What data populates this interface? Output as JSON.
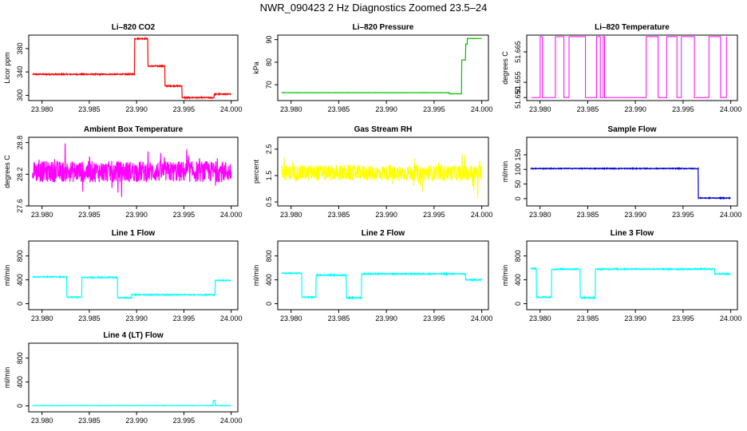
{
  "title": "NWR_090423  2 Hz Diagnostics Zoomed 23.5–24",
  "chart_data": [
    {
      "id": "co2",
      "type": "line",
      "title": "Li–820 CO2",
      "ylabel": "Licor ppm",
      "color": "#ff0000",
      "xlim": [
        23.9786,
        24.0007
      ],
      "ylim": [
        291,
        403
      ],
      "xticks": [
        "23.980",
        "23.985",
        "23.990",
        "23.995",
        "24.000"
      ],
      "yticks": [
        "300",
        "340",
        "380"
      ],
      "series": [
        {
          "name": "CO2",
          "noise": 1.0,
          "segments": [
            [
              23.979,
              23.9898,
              336
            ],
            [
              23.9898,
              23.9912,
              397
            ],
            [
              23.9912,
              23.993,
              350
            ],
            [
              23.993,
              23.9948,
              316
            ],
            [
              23.9948,
              23.9982,
              296
            ],
            [
              23.9982,
              24.0,
              302
            ]
          ]
        }
      ]
    },
    {
      "id": "pressure",
      "type": "line",
      "title": "Li–820 Pressure",
      "ylabel": "kPa",
      "color": "#00c000",
      "xlim": [
        23.9786,
        24.0007
      ],
      "ylim": [
        63,
        92
      ],
      "xticks": [
        "23.980",
        "23.985",
        "23.990",
        "23.995",
        "24.000"
      ],
      "yticks": [
        "70",
        "80",
        "90"
      ],
      "series": [
        {
          "name": "Pressure",
          "noise": 0.05,
          "segments": [
            [
              23.979,
              23.9966,
              66.5
            ],
            [
              23.9966,
              23.9979,
              66.0
            ],
            [
              23.9979,
              23.9983,
              81
            ],
            [
              23.9983,
              23.9985,
              88
            ],
            [
              23.9985,
              24.0,
              90.5
            ]
          ]
        }
      ]
    },
    {
      "id": "temperature",
      "type": "line",
      "title": "Li–820 Temperature",
      "ylabel": "degrees C",
      "color": "#ff00ff",
      "xlim": [
        23.9786,
        24.0007
      ],
      "ylim": [
        51.649,
        51.6705
      ],
      "xticks": [
        "23.980",
        "23.985",
        "23.990",
        "23.995",
        "24.000"
      ],
      "yticks": [
        "51.650",
        "51.655",
        "51.665"
      ],
      "series": [
        {
          "name": "Temperature",
          "style": "toggle",
          "low": 51.65,
          "high": 51.67,
          "segments": []
        }
      ]
    },
    {
      "id": "ambient",
      "type": "line",
      "title": "Ambient Box Temperature",
      "ylabel": "degrees C",
      "color": "#ff00ff",
      "xlim": [
        23.9786,
        24.0007
      ],
      "ylim": [
        27.6,
        28.9
      ],
      "xticks": [
        "23.980",
        "23.985",
        "23.990",
        "23.995",
        "24.000"
      ],
      "yticks": [
        "27.6",
        "28.2",
        "28.8"
      ],
      "series": [
        {
          "name": "Ambient",
          "noise": 0.2,
          "spikes": 0.4,
          "segments": [
            [
              23.979,
              24.0,
              28.25
            ]
          ]
        }
      ]
    },
    {
      "id": "rh",
      "type": "line",
      "title": "Gas Stream RH",
      "ylabel": "percent",
      "color": "#ffff00",
      "xlim": [
        23.9786,
        24.0007
      ],
      "ylim": [
        0.35,
        2.95
      ],
      "xticks": [
        "23.980",
        "23.985",
        "23.990",
        "23.995",
        "24.000"
      ],
      "yticks": [
        "0.5",
        "1.5",
        "2.5"
      ],
      "series": [
        {
          "name": "RH",
          "noise": 0.3,
          "spikes": 0.8,
          "segments": [
            [
              23.979,
              24.0,
              1.6
            ]
          ]
        }
      ]
    },
    {
      "id": "sample",
      "type": "line",
      "title": "Sample Flow",
      "ylabel": "ml/min",
      "color": "#0000cc",
      "xlim": [
        23.9786,
        24.0007
      ],
      "ylim": [
        -25,
        210
      ],
      "xticks": [
        "23.980",
        "23.985",
        "23.990",
        "23.995",
        "24.000"
      ],
      "yticks": [
        "0",
        "50",
        "100",
        "150"
      ],
      "series": [
        {
          "name": "Sample",
          "noise": 1.5,
          "segments": [
            [
              23.979,
              23.9966,
              103
            ],
            [
              23.9966,
              24.0,
              2
            ]
          ]
        }
      ]
    },
    {
      "id": "line1",
      "type": "line",
      "title": "Line 1 Flow",
      "ylabel": "ml/min",
      "color": "#00ffff",
      "xlim": [
        23.9786,
        24.0007
      ],
      "ylim": [
        -100,
        1050
      ],
      "xticks": [
        "23.980",
        "23.985",
        "23.990",
        "23.995",
        "24.000"
      ],
      "yticks": [
        "0",
        "400",
        "800"
      ],
      "series": [
        {
          "name": "Line1",
          "noise": 8,
          "segments": [
            [
              23.979,
              23.9826,
              450
            ],
            [
              23.9826,
              23.9842,
              110
            ],
            [
              23.9842,
              23.988,
              440
            ],
            [
              23.988,
              23.9895,
              100
            ],
            [
              23.9895,
              23.9983,
              150
            ],
            [
              23.9983,
              24.0,
              390
            ]
          ]
        }
      ]
    },
    {
      "id": "line2",
      "type": "line",
      "title": "Line 2 Flow",
      "ylabel": "ml/min",
      "color": "#00ffff",
      "xlim": [
        23.9786,
        24.0007
      ],
      "ylim": [
        -100,
        1050
      ],
      "xticks": [
        "23.980",
        "23.985",
        "23.990",
        "23.995",
        "24.000"
      ],
      "yticks": [
        "0",
        "400",
        "800"
      ],
      "series": [
        {
          "name": "Line2",
          "noise": 10,
          "segments": [
            [
              23.979,
              23.9811,
              510
            ],
            [
              23.9811,
              23.9826,
              110
            ],
            [
              23.9826,
              23.9858,
              480
            ],
            [
              23.9858,
              23.9874,
              100
            ],
            [
              23.9874,
              23.9983,
              500
            ],
            [
              23.9983,
              24.0,
              400
            ]
          ]
        }
      ]
    },
    {
      "id": "line3",
      "type": "line",
      "title": "Line 3 Flow",
      "ylabel": "ml/min",
      "color": "#00ffff",
      "xlim": [
        23.9786,
        24.0007
      ],
      "ylim": [
        -100,
        1050
      ],
      "xticks": [
        "23.980",
        "23.985",
        "23.990",
        "23.995",
        "24.000"
      ],
      "yticks": [
        "0",
        "400",
        "800"
      ],
      "series": [
        {
          "name": "Line3",
          "noise": 10,
          "segments": [
            [
              23.979,
              23.9796,
              590
            ],
            [
              23.9796,
              23.9812,
              110
            ],
            [
              23.9812,
              23.9842,
              580
            ],
            [
              23.9842,
              23.9858,
              100
            ],
            [
              23.9858,
              23.9983,
              580
            ],
            [
              23.9983,
              24.0,
              500
            ]
          ]
        }
      ]
    },
    {
      "id": "line4",
      "type": "line",
      "title": "Line 4 (LT) Flow",
      "ylabel": "ml/min",
      "color": "#00ffff",
      "xlim": [
        23.9786,
        24.0007
      ],
      "ylim": [
        -100,
        1050
      ],
      "xticks": [
        "23.980",
        "23.985",
        "23.990",
        "23.995",
        "24.000"
      ],
      "yticks": [
        "0",
        "400",
        "800"
      ],
      "series": [
        {
          "name": "Line4",
          "noise": 3,
          "segments": [
            [
              23.979,
              23.9981,
              5
            ],
            [
              23.9981,
              23.9983,
              90
            ],
            [
              23.9983,
              24.0,
              5
            ]
          ]
        }
      ]
    }
  ]
}
